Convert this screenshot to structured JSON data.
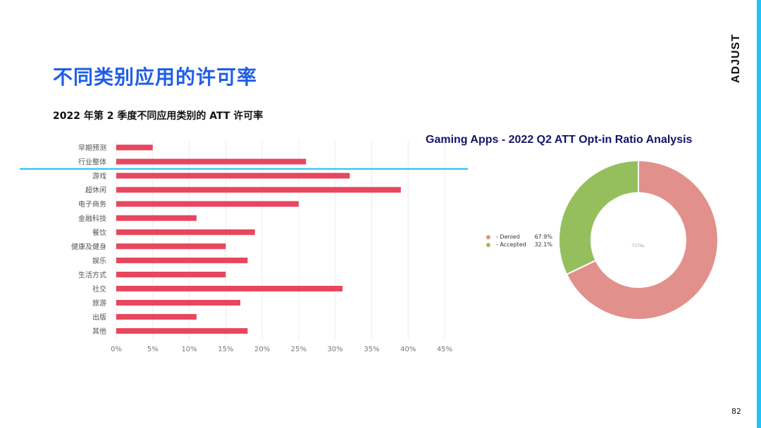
{
  "brand": {
    "name": "ADJUST"
  },
  "page": {
    "title": "不同类别应用的许可率",
    "number": "82"
  },
  "colors": {
    "accent": "#22c3f0",
    "title": "#1f5ee6",
    "bar": "#e8465f",
    "denied": "#e2908b",
    "accepted": "#95bf5c"
  },
  "chart_data": [
    {
      "type": "bar",
      "orientation": "horizontal",
      "title": "2022 年第 2 季度不同应用类别的 ATT 许可率",
      "categories": [
        "早期预测",
        "行业整体",
        "游戏",
        "超休闲",
        "电子商务",
        "金融科技",
        "餐饮",
        "健康及健身",
        "娱乐",
        "生活方式",
        "社交",
        "旅游",
        "出版",
        "其他"
      ],
      "values": [
        5,
        26,
        32,
        39,
        25,
        11,
        19,
        15,
        18,
        15,
        31,
        17,
        11,
        18
      ],
      "xlim": [
        0,
        45
      ],
      "x_ticks": [
        "0%",
        "5%",
        "10%",
        "15%",
        "20%",
        "25%",
        "30%",
        "35%",
        "40%",
        "45%"
      ],
      "grid": true
    },
    {
      "type": "pie",
      "style": "donut",
      "title": "Gaming Apps - 2022 Q2 ATT Opt-in Ratio Analysis",
      "center_label": "TOTAL",
      "legend_position": "left",
      "slices": [
        {
          "name": "- Denied",
          "value": 67.9,
          "label": "67.9%",
          "color": "#e2908b"
        },
        {
          "name": "- Accepted",
          "value": 32.1,
          "label": "32.1%",
          "color": "#95bf5c"
        }
      ]
    }
  ]
}
